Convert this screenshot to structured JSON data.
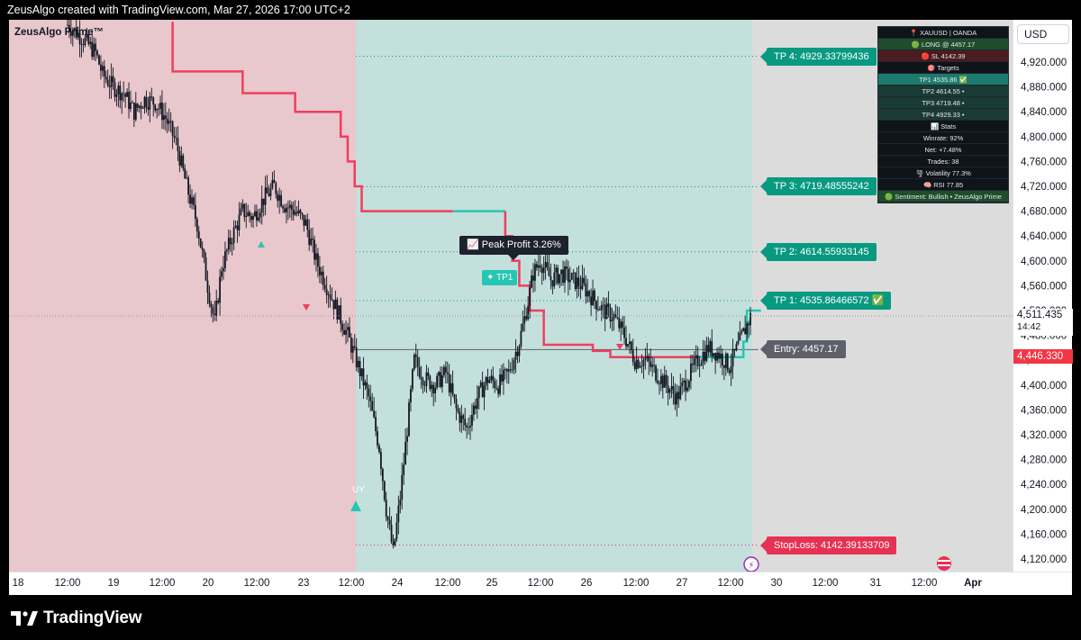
{
  "header": {
    "text": "ZeusAlgo created with TradingView.com, Mar 27, 2026 17:00 UTC+2"
  },
  "indicator": {
    "name": "ZeusAlgo Prime™"
  },
  "currency_button": "USD",
  "brand": {
    "name": "TradingView"
  },
  "panel": {
    "rows": [
      {
        "text": "📍 XAUUSD | OANDA",
        "bg": "#0f1419"
      },
      {
        "text": "🟢 LONG @ 4457.17",
        "bg": "#1e4d2b"
      },
      {
        "text": "🔴 SL 4142.39",
        "bg": "#4a1c22"
      },
      {
        "text": "🎯 Targets",
        "bg": "#0f1419"
      },
      {
        "text": "TP1 4535.86 ✅",
        "bg": "#1e7a6e"
      },
      {
        "text": "TP2 4614.55 •",
        "bg": "#1a3a36"
      },
      {
        "text": "TP3 4719.48 •",
        "bg": "#1a3a36"
      },
      {
        "text": "TP4 4929.33 •",
        "bg": "#1a3a36"
      },
      {
        "text": "📊 Stats",
        "bg": "#0f1419"
      },
      {
        "text": "Winrate: 92%",
        "bg": "#0f1419"
      },
      {
        "text": "Net: +7.48%",
        "bg": "#0f1419"
      },
      {
        "text": "Trades: 38",
        "bg": "#0f1419"
      },
      {
        "text": "🌪 Volatility 77.3%",
        "bg": "#0f1419"
      },
      {
        "text": "🧠 RSI 77.85",
        "bg": "#0f1419"
      },
      {
        "text": "🟢 Sentiment: Bullish  •  ZeusAlgo Prime",
        "bg": "#1e4d2b"
      }
    ]
  },
  "annotations": {
    "peak_profit": "📈 Peak Profit 3.26%",
    "tp1_badge": "✦ TP1",
    "buy_label": "UY"
  },
  "chart_data": {
    "type": "candlestick",
    "symbol": "XAUUSD",
    "ylim": [
      4100,
      4960
    ],
    "y_ticks": [
      4120,
      4160,
      4200,
      4240,
      4280,
      4320,
      4360,
      4400,
      4440,
      4480,
      4520,
      4560,
      4600,
      4640,
      4680,
      4720,
      4760,
      4800,
      4840,
      4880,
      4920
    ],
    "y_tick_labels": [
      "4,120.000",
      "4,160.000",
      "4,200.000",
      "4,240.000",
      "4,280.000",
      "4,320.000",
      "4,360.000",
      "4,400.000",
      "4,440.000",
      "4,480.000",
      "4,520.000",
      "4,560.000",
      "4,600.000",
      "4,640.000",
      "4,680.000",
      "4,720.000",
      "4,760.000",
      "4,800.000",
      "4,840.000",
      "4,880.000",
      "4,920.000"
    ],
    "x_ticks": [
      "18",
      "12:00",
      "19",
      "12:00",
      "20",
      "12:00",
      "23",
      "12:00",
      "24",
      "12:00",
      "25",
      "12:00",
      "26",
      "12:00",
      "27",
      "12:00",
      "30",
      "12:00",
      "31",
      "12:00",
      "Apr"
    ],
    "current_price": {
      "value": "4,511.435",
      "countdown": "14:42",
      "y": 4511.435
    },
    "marker_price": {
      "value": "4,446.330",
      "y": 4446.33,
      "color": "#f23645"
    },
    "levels": [
      {
        "label": "TP 4: 4929.33799436",
        "y": 4929.338,
        "kind": "tp"
      },
      {
        "label": "TP 3: 4719.48555242",
        "y": 4719.486,
        "kind": "tp"
      },
      {
        "label": "TP 2: 4614.55933145",
        "y": 4614.559,
        "kind": "tp"
      },
      {
        "label": "TP 1: 4535.86466572 ✅",
        "y": 4535.865,
        "kind": "tp"
      },
      {
        "label": "Entry: 4457.17",
        "y": 4457.17,
        "kind": "entry"
      },
      {
        "label": "StopLoss: 4142.39133709",
        "y": 4142.391,
        "kind": "sl"
      }
    ],
    "zones": {
      "short_color": "#e8c8cc",
      "long_color": "#c4e0dc",
      "future_color": "#dcdcdc"
    },
    "colors": {
      "bull_line": "#26c6b5",
      "bear_line": "#f23d5e",
      "candle": "#131722"
    },
    "price_path": [
      [
        0,
        4980
      ],
      [
        4,
        4960
      ],
      [
        8,
        4935
      ],
      [
        10,
        4900
      ],
      [
        13,
        4880
      ],
      [
        16,
        4870
      ],
      [
        19,
        4840
      ],
      [
        22,
        4860
      ],
      [
        25,
        4855
      ],
      [
        28,
        4830
      ],
      [
        31,
        4790
      ],
      [
        34,
        4720
      ],
      [
        37,
        4660
      ],
      [
        40,
        4560
      ],
      [
        42,
        4500
      ],
      [
        44,
        4590
      ],
      [
        47,
        4640
      ],
      [
        50,
        4680
      ],
      [
        53,
        4670
      ],
      [
        56,
        4700
      ],
      [
        59,
        4720
      ],
      [
        62,
        4690
      ],
      [
        65,
        4680
      ],
      [
        68,
        4660
      ],
      [
        71,
        4600
      ],
      [
        74,
        4560
      ],
      [
        77,
        4520
      ],
      [
        80,
        4480
      ],
      [
        83,
        4430
      ],
      [
        86,
        4380
      ],
      [
        89,
        4300
      ],
      [
        91,
        4200
      ],
      [
        93,
        4130
      ],
      [
        95,
        4220
      ],
      [
        97,
        4330
      ],
      [
        99,
        4440
      ],
      [
        102,
        4410
      ],
      [
        105,
        4400
      ],
      [
        108,
        4420
      ],
      [
        111,
        4360
      ],
      [
        114,
        4330
      ],
      [
        117,
        4380
      ],
      [
        120,
        4410
      ],
      [
        123,
        4400
      ],
      [
        126,
        4420
      ],
      [
        129,
        4470
      ],
      [
        131,
        4520
      ],
      [
        133,
        4580
      ],
      [
        135,
        4600
      ],
      [
        138,
        4570
      ],
      [
        141,
        4580
      ],
      [
        144,
        4570
      ],
      [
        147,
        4560
      ],
      [
        150,
        4540
      ],
      [
        153,
        4520
      ],
      [
        156,
        4510
      ],
      [
        159,
        4480
      ],
      [
        162,
        4440
      ],
      [
        165,
        4440
      ],
      [
        168,
        4420
      ],
      [
        171,
        4400
      ],
      [
        174,
        4380
      ],
      [
        177,
        4410
      ],
      [
        180,
        4440
      ],
      [
        183,
        4460
      ],
      [
        186,
        4450
      ],
      [
        189,
        4430
      ],
      [
        192,
        4470
      ],
      [
        195,
        4510
      ]
    ],
    "trail_segments": [
      {
        "color": "#f23d5e",
        "points": [
          [
            30,
            4985
          ],
          [
            30,
            4905
          ],
          [
            50,
            4905
          ],
          [
            50,
            4870
          ],
          [
            65,
            4870
          ],
          [
            65,
            4840
          ],
          [
            78,
            4840
          ],
          [
            78,
            4800
          ],
          [
            80,
            4800
          ],
          [
            80,
            4760
          ],
          [
            82,
            4760
          ],
          [
            82,
            4720
          ],
          [
            84,
            4720
          ],
          [
            84,
            4680
          ],
          [
            110,
            4680
          ]
        ]
      },
      {
        "color": "#26c6b5",
        "points": [
          [
            110,
            4680
          ],
          [
            125,
            4680
          ]
        ]
      },
      {
        "color": "#f23d5e",
        "points": [
          [
            125,
            4680
          ],
          [
            125,
            4640
          ],
          [
            127,
            4640
          ],
          [
            127,
            4600
          ],
          [
            129,
            4600
          ],
          [
            129,
            4560
          ],
          [
            132,
            4560
          ],
          [
            132,
            4520
          ],
          [
            136,
            4520
          ],
          [
            136,
            4465
          ],
          [
            150,
            4465
          ],
          [
            150,
            4455
          ],
          [
            155,
            4455
          ],
          [
            155,
            4445
          ],
          [
            180,
            4445
          ]
        ]
      },
      {
        "color": "#26c6b5",
        "points": [
          [
            180,
            4445
          ],
          [
            193,
            4445
          ],
          [
            193,
            4470
          ],
          [
            194,
            4470
          ],
          [
            194,
            4520
          ],
          [
            198,
            4520
          ]
        ]
      }
    ]
  }
}
